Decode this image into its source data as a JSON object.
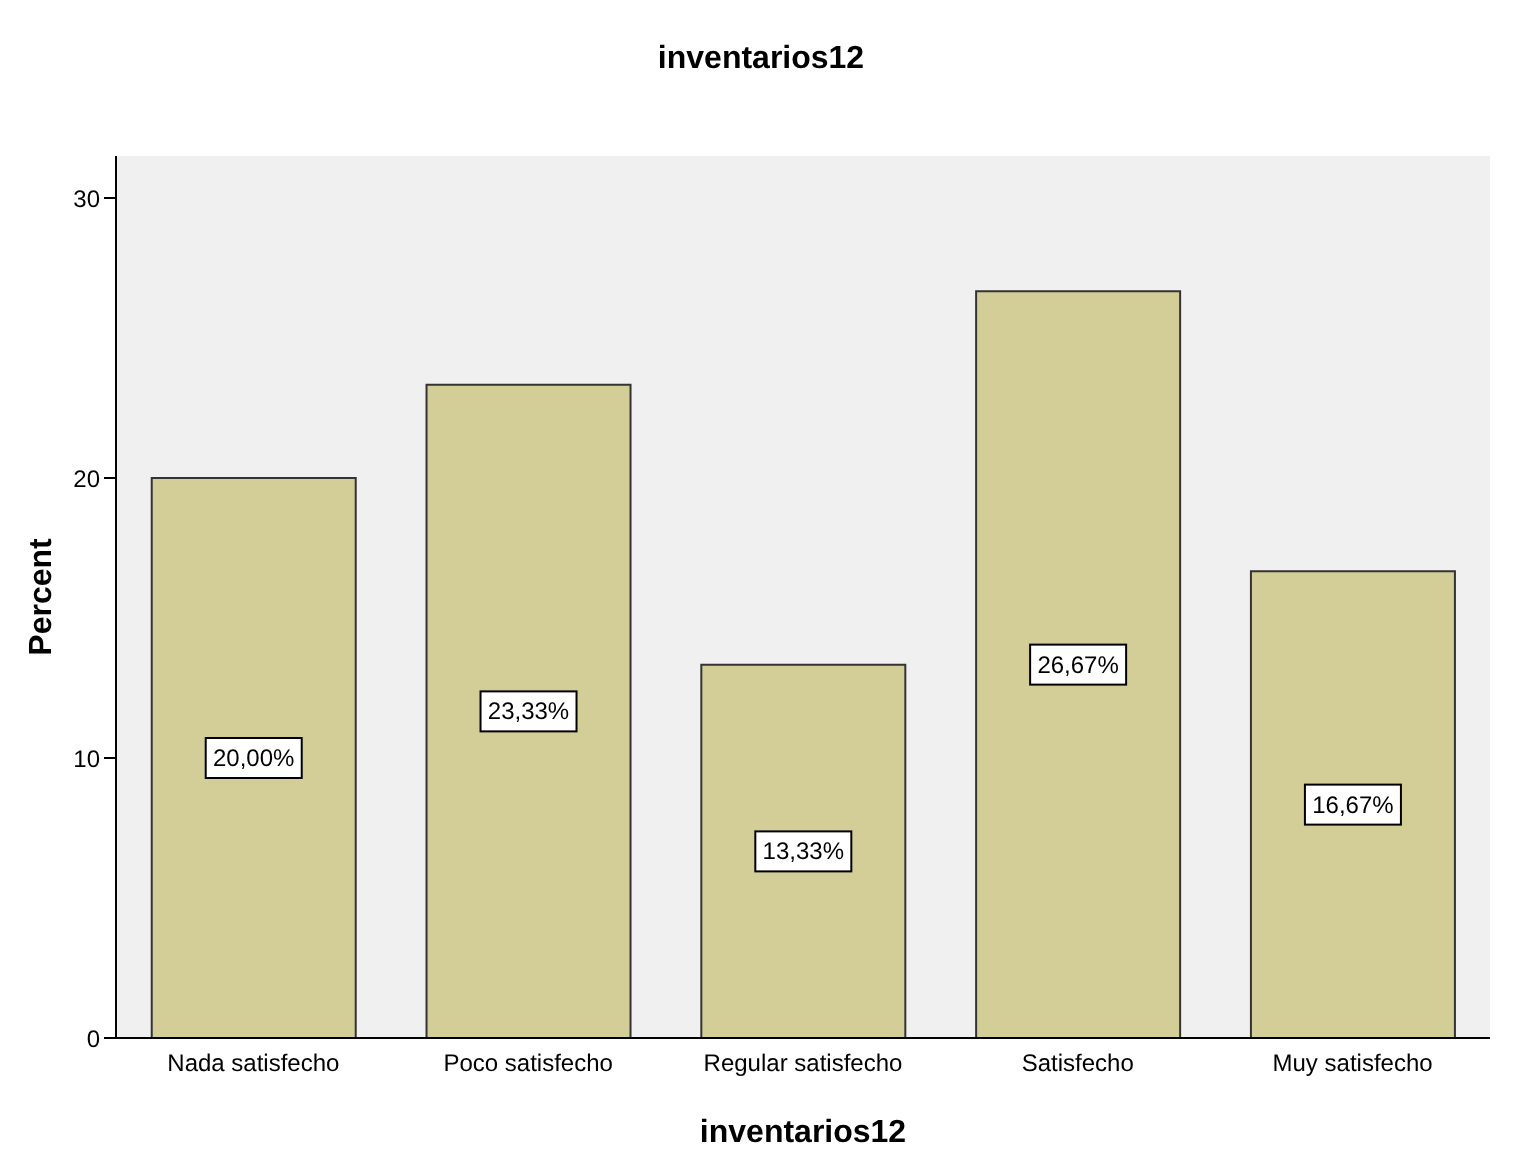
{
  "chart_data": {
    "type": "bar",
    "title": "inventarios12",
    "xlabel": "inventarios12",
    "ylabel": "Percent",
    "categories": [
      "Nada satisfecho",
      "Poco satisfecho",
      "Regular satisfecho",
      "Satisfecho",
      "Muy satisfecho"
    ],
    "values": [
      20,
      23.33,
      13.33,
      26.67,
      16.67
    ],
    "value_labels": [
      "20,00%",
      "23,33%",
      "13,33%",
      "26,67%",
      "16,67%"
    ],
    "color": "#d3ce97",
    "ylim": [
      0,
      31.5
    ],
    "yticks": [
      0,
      10,
      20,
      30
    ],
    "grid": false,
    "legend": false
  }
}
